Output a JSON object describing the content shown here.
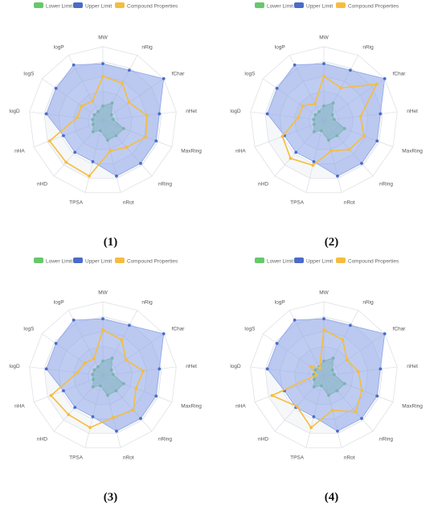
{
  "axes": [
    "MW",
    "nRig",
    "fChar",
    "nHet",
    "MaxRing",
    "nRing",
    "nRot",
    "TPSA",
    "nHD",
    "nHA",
    "logD",
    "logS",
    "logP"
  ],
  "legend": [
    "Lower Limit",
    "Upper Limit",
    "Compound Properties"
  ],
  "colors": {
    "lower": "#66c86a",
    "upper": "#4a6bc8",
    "compound": "#f5bd3d",
    "upper_fill": "#8aa3e8",
    "lower_fill": "#72c98a",
    "grid": "#dadde3",
    "ring_band": "#f6f7f9",
    "label": "#555555"
  },
  "chart_data": [
    {
      "type": "radar",
      "caption": "(1)",
      "axes": [
        "MW",
        "nRig",
        "fChar",
        "nHet",
        "MaxRing",
        "nRing",
        "nRot",
        "TPSA",
        "nHD",
        "nHA",
        "logD",
        "logS",
        "logP"
      ],
      "range": [
        0,
        1
      ],
      "series": [
        {
          "name": "Lower Limit",
          "values": [
            0.2,
            0.27,
            0.14,
            0.14,
            0.3,
            0.27,
            0.27,
            0.14,
            0.2,
            0.14,
            0.14,
            0.14,
            0.14
          ]
        },
        {
          "name": "Upper Limit",
          "values": [
            0.77,
            0.77,
            1.0,
            0.77,
            0.77,
            0.77,
            0.77,
            0.57,
            0.57,
            0.57,
            0.77,
            0.77,
            0.85
          ]
        },
        {
          "name": "Compound Properties",
          "values": [
            0.6,
            0.57,
            0.43,
            0.6,
            0.62,
            0.48,
            0.42,
            0.77,
            0.75,
            0.77,
            0.35,
            0.35,
            0.3
          ]
        }
      ]
    },
    {
      "type": "radar",
      "caption": "(2)",
      "axes": [
        "MW",
        "nRig",
        "fChar",
        "nHet",
        "MaxRing",
        "nRing",
        "nRot",
        "TPSA",
        "nHD",
        "nHA",
        "logD",
        "logS",
        "logP"
      ],
      "range": [
        0,
        1
      ],
      "series": [
        {
          "name": "Lower Limit",
          "values": [
            0.2,
            0.27,
            0.14,
            0.14,
            0.3,
            0.27,
            0.27,
            0.14,
            0.2,
            0.14,
            0.14,
            0.14,
            0.14
          ]
        },
        {
          "name": "Upper Limit",
          "values": [
            0.77,
            0.77,
            1.0,
            0.77,
            0.77,
            0.77,
            0.77,
            0.57,
            0.57,
            0.57,
            0.77,
            0.77,
            0.85
          ]
        },
        {
          "name": "Compound Properties",
          "values": [
            0.6,
            0.5,
            0.87,
            0.5,
            0.58,
            0.52,
            0.42,
            0.62,
            0.68,
            0.6,
            0.35,
            0.35,
            0.26
          ]
        }
      ]
    },
    {
      "type": "radar",
      "caption": "(3)",
      "axes": [
        "MW",
        "nRig",
        "fChar",
        "nHet",
        "MaxRing",
        "nRing",
        "nRot",
        "TPSA",
        "nHD",
        "nHA",
        "logD",
        "logS",
        "logP"
      ],
      "range": [
        0,
        1
      ],
      "series": [
        {
          "name": "Lower Limit",
          "values": [
            0.2,
            0.27,
            0.14,
            0.14,
            0.3,
            0.27,
            0.27,
            0.14,
            0.2,
            0.14,
            0.14,
            0.14,
            0.14
          ]
        },
        {
          "name": "Upper Limit",
          "values": [
            0.77,
            0.77,
            1.0,
            0.77,
            0.77,
            0.77,
            0.77,
            0.57,
            0.57,
            0.57,
            0.77,
            0.77,
            0.85
          ]
        },
        {
          "name": "Compound Properties",
          "values": [
            0.62,
            0.55,
            0.38,
            0.55,
            0.48,
            0.62,
            0.58,
            0.72,
            0.7,
            0.75,
            0.35,
            0.3,
            0.26
          ]
        }
      ]
    },
    {
      "type": "radar",
      "caption": "(4)",
      "axes": [
        "MW",
        "nRig",
        "fChar",
        "nHet",
        "MaxRing",
        "nRing",
        "nRot",
        "TPSA",
        "nHD",
        "nHA",
        "logD",
        "logS",
        "logP"
      ],
      "range": [
        0,
        1
      ],
      "series": [
        {
          "name": "Lower Limit",
          "values": [
            0.2,
            0.27,
            0.14,
            0.14,
            0.3,
            0.27,
            0.27,
            0.14,
            0.2,
            0.14,
            0.14,
            0.14,
            0.14
          ]
        },
        {
          "name": "Upper Limit",
          "values": [
            0.77,
            0.77,
            1.0,
            0.77,
            0.77,
            0.77,
            0.77,
            0.57,
            0.57,
            0.57,
            0.77,
            0.77,
            0.85
          ]
        },
        {
          "name": "Compound Properties",
          "values": [
            0.62,
            0.55,
            0.38,
            0.47,
            0.55,
            0.65,
            0.48,
            0.72,
            0.55,
            0.75,
            0.1,
            0.22,
            0.12
          ]
        }
      ]
    }
  ]
}
